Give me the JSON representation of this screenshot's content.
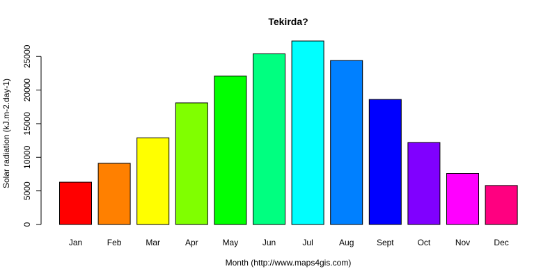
{
  "chart_data": {
    "type": "bar",
    "title": "Tekirda?",
    "xlabel": "Month (http://www.maps4gis.com)",
    "ylabel": "Solar radiation (kJ.m-2.day-1)",
    "categories": [
      "Jan",
      "Feb",
      "Mar",
      "Apr",
      "May",
      "Jun",
      "Jul",
      "Aug",
      "Sept",
      "Oct",
      "Nov",
      "Dec"
    ],
    "values": [
      6300,
      9100,
      12900,
      18100,
      22100,
      25400,
      27300,
      24400,
      18600,
      12200,
      7600,
      5800
    ],
    "colors": [
      "#FF0000",
      "#FF8000",
      "#FFFF00",
      "#80FF00",
      "#00FF00",
      "#00FF80",
      "#00FFFF",
      "#0080FF",
      "#0000FF",
      "#8000FF",
      "#FF00FF",
      "#FF0080"
    ],
    "yticks": [
      0,
      5000,
      10000,
      15000,
      20000,
      25000
    ],
    "ylim": [
      0,
      27300
    ],
    "grid": false,
    "legend": "none"
  }
}
